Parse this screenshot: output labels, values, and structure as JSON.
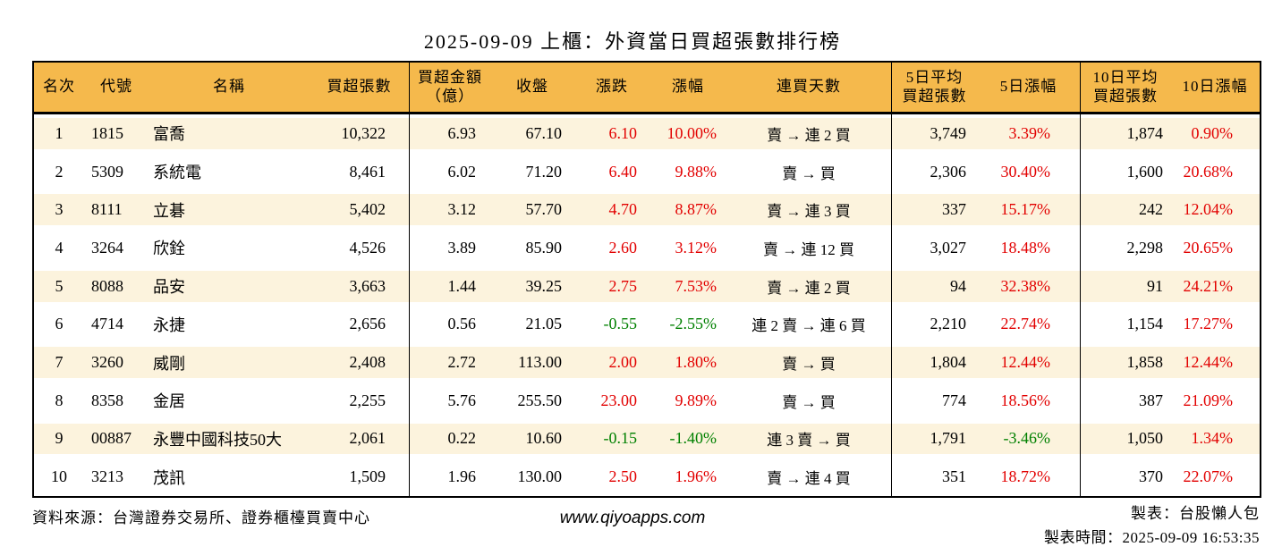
{
  "title": "2025-09-09 上櫃：外資當日買超張數排行榜",
  "colors": {
    "header_bg": "#f5b94c",
    "stripe": "#fcf3dd",
    "up_red": "#e20000",
    "down_green": "#008000",
    "border": "#000000"
  },
  "chart_data": {
    "type": "table",
    "title": "2025-09-09 上櫃：外資當日買超張數排行榜",
    "columns": [
      "名次",
      "代號",
      "名稱",
      "買超張數",
      "買超金額（億）",
      "收盤",
      "漲跌",
      "漲幅",
      "連買天數",
      "5日平均買超張數",
      "5日漲幅",
      "10日平均買超張數",
      "10日漲幅"
    ],
    "header_lines": [
      [
        "名次"
      ],
      [
        "代號"
      ],
      [
        "名稱"
      ],
      [
        "買超張數"
      ],
      [
        "買超金額",
        "（億）"
      ],
      [
        "收盤"
      ],
      [
        "漲跌"
      ],
      [
        "漲幅"
      ],
      [
        "連買天數"
      ],
      [
        "5日平均",
        "買超張數"
      ],
      [
        "5日漲幅"
      ],
      [
        "10日平均",
        "買超張數"
      ],
      [
        "10日漲幅"
      ]
    ],
    "signed_color_columns": [
      6,
      7,
      10,
      12
    ],
    "rows": [
      [
        "1",
        "1815",
        "富喬",
        "10,322",
        "6.93",
        "67.10",
        "6.10",
        "10.00%",
        "賣 → 連 2 買",
        "3,749",
        "3.39%",
        "1,874",
        "0.90%"
      ],
      [
        "2",
        "5309",
        "系統電",
        "8,461",
        "6.02",
        "71.20",
        "6.40",
        "9.88%",
        "賣 → 買",
        "2,306",
        "30.40%",
        "1,600",
        "20.68%"
      ],
      [
        "3",
        "8111",
        "立碁",
        "5,402",
        "3.12",
        "57.70",
        "4.70",
        "8.87%",
        "賣 → 連 3 買",
        "337",
        "15.17%",
        "242",
        "12.04%"
      ],
      [
        "4",
        "3264",
        "欣銓",
        "4,526",
        "3.89",
        "85.90",
        "2.60",
        "3.12%",
        "賣 → 連 12 買",
        "3,027",
        "18.48%",
        "2,298",
        "20.65%"
      ],
      [
        "5",
        "8088",
        "品安",
        "3,663",
        "1.44",
        "39.25",
        "2.75",
        "7.53%",
        "賣 → 連 2 買",
        "94",
        "32.38%",
        "91",
        "24.21%"
      ],
      [
        "6",
        "4714",
        "永捷",
        "2,656",
        "0.56",
        "21.05",
        "-0.55",
        "-2.55%",
        "連 2 賣 → 連 6 買",
        "2,210",
        "22.74%",
        "1,154",
        "17.27%"
      ],
      [
        "7",
        "3260",
        "威剛",
        "2,408",
        "2.72",
        "113.00",
        "2.00",
        "1.80%",
        "賣 → 買",
        "1,804",
        "12.44%",
        "1,858",
        "12.44%"
      ],
      [
        "8",
        "8358",
        "金居",
        "2,255",
        "5.76",
        "255.50",
        "23.00",
        "9.89%",
        "賣 → 買",
        "774",
        "18.56%",
        "387",
        "21.09%"
      ],
      [
        "9",
        "00887",
        "永豐中國科技50大",
        "2,061",
        "0.22",
        "10.60",
        "-0.15",
        "-1.40%",
        "連 3 賣 → 買",
        "1,791",
        "-3.46%",
        "1,050",
        "1.34%"
      ],
      [
        "10",
        "3213",
        "茂訊",
        "1,509",
        "1.96",
        "130.00",
        "2.50",
        "1.96%",
        "賣 → 連 4 買",
        "351",
        "18.72%",
        "370",
        "22.07%"
      ]
    ]
  },
  "footer": {
    "source": "資料來源：台灣證券交易所、證券櫃檯買賣中心",
    "website": "www.qiyoapps.com",
    "maker": "製表：台股懶人包",
    "made_at": "製表時間：2025-09-09 16:53:35"
  }
}
